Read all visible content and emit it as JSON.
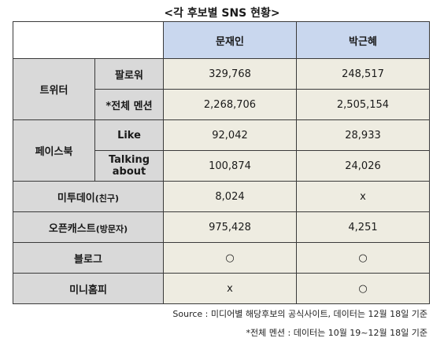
{
  "title": "<각 후보별 SNS 현황>",
  "columns": [
    "문재인",
    "박근혜"
  ],
  "rows": {
    "twitter": {
      "label": "트위터",
      "followers": {
        "label": "팔로워",
        "values": [
          "329,768",
          "248,517"
        ]
      },
      "mentions": {
        "label": "*전체 멘션",
        "values": [
          "2,268,706",
          "2,505,154"
        ]
      }
    },
    "facebook": {
      "label": "페이스북",
      "like": {
        "label": "Like",
        "values": [
          "92,042",
          "28,933"
        ]
      },
      "talking": {
        "label": "Talking about",
        "values": [
          "100,874",
          "24,026"
        ]
      }
    },
    "me2day": {
      "label_main": "미투데이",
      "label_sub": "(친구)",
      "values": [
        "8,024",
        "x"
      ]
    },
    "podcast": {
      "label_main": "오픈캐스트",
      "label_sub": "(방문자)",
      "values": [
        "975,428",
        "4,251"
      ]
    },
    "blog": {
      "label": "블로그",
      "values": [
        "○",
        "○"
      ]
    },
    "minihompy": {
      "label": "미니홈피",
      "values": [
        "x",
        "○"
      ]
    }
  },
  "footnotes": {
    "source": "Source : 미디어별 해당후보의 공식사이트, 데이터는 12월 18일 기준",
    "mention_note": "*전체 멘션 : 데이터는 10월 19~12월 18일 기준"
  }
}
